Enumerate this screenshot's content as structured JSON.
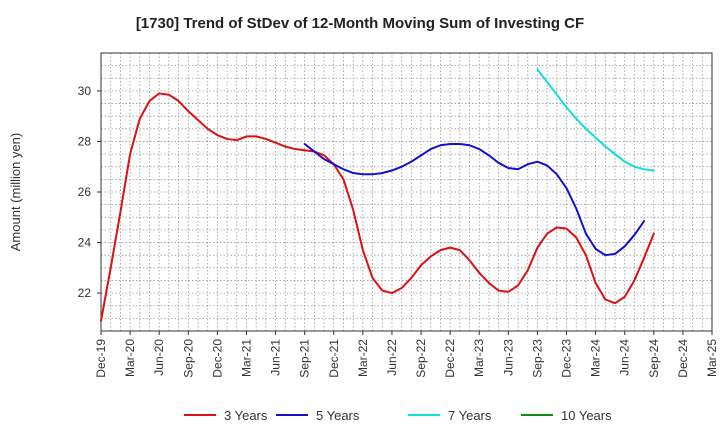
{
  "chart_data": {
    "type": "line",
    "title": "[1730]  Trend of StDev of 12-Month Moving Sum of Investing CF",
    "xlabel": "",
    "ylabel": "Amount (million yen)",
    "ylim": [
      20.5,
      31.5
    ],
    "yticks": [
      22,
      24,
      26,
      28,
      30
    ],
    "x_categories": [
      "Dec-19",
      "Mar-20",
      "Jun-20",
      "Sep-20",
      "Dec-20",
      "Mar-21",
      "Jun-21",
      "Sep-21",
      "Dec-21",
      "Mar-22",
      "Jun-22",
      "Sep-22",
      "Dec-22",
      "Mar-23",
      "Jun-23",
      "Sep-23",
      "Dec-23",
      "Mar-24",
      "Jun-24",
      "Sep-24",
      "Dec-24",
      "Mar-25"
    ],
    "grid": true,
    "legend_position": "bottom",
    "series": [
      {
        "name": "3 Years",
        "color": "#dd1111",
        "start_index": 0,
        "values": [
          20.9,
          23.0,
          25.2,
          27.5,
          28.9,
          29.6,
          29.9,
          29.85,
          29.6,
          29.2,
          28.85,
          28.5,
          28.25,
          28.1,
          28.05,
          28.2,
          28.2,
          28.1,
          27.95,
          27.8,
          27.7,
          27.65,
          27.6,
          27.45,
          27.1,
          26.5,
          25.3,
          23.7,
          22.6,
          22.1,
          22.0,
          22.2,
          22.6,
          23.1,
          23.45,
          23.7,
          23.8,
          23.7,
          23.3,
          22.8,
          22.4,
          22.1,
          22.05,
          22.3,
          22.9,
          23.8,
          24.35,
          24.6,
          24.55,
          24.2,
          23.5,
          22.4,
          21.75,
          21.6,
          21.85,
          22.5,
          23.4,
          24.35
        ]
      },
      {
        "name": "5 Years",
        "color": "#1111cc",
        "start_index": 21,
        "values": [
          27.9,
          27.6,
          27.3,
          27.1,
          26.9,
          26.75,
          26.7,
          26.7,
          26.75,
          26.85,
          27.0,
          27.2,
          27.45,
          27.7,
          27.85,
          27.9,
          27.9,
          27.85,
          27.7,
          27.45,
          27.15,
          26.95,
          26.9,
          27.1,
          27.2,
          27.05,
          26.7,
          26.15,
          25.35,
          24.35,
          23.75,
          23.5,
          23.55,
          23.85,
          24.3,
          24.85
        ]
      },
      {
        "name": "7 Years",
        "color": "#11dddd",
        "start_index": 45,
        "values": [
          30.85,
          30.35,
          29.85,
          29.35,
          28.9,
          28.5,
          28.15,
          27.8,
          27.5,
          27.2,
          27.0,
          26.9,
          26.85
        ]
      },
      {
        "name": "10 Years",
        "color": "#118811",
        "start_index": 0,
        "values": []
      }
    ]
  }
}
